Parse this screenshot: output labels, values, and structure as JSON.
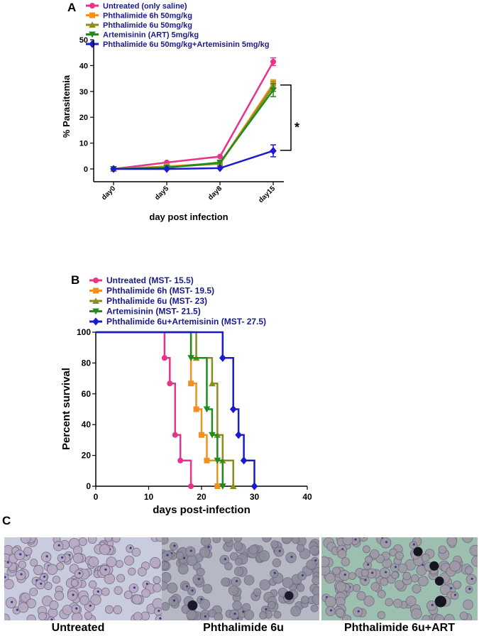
{
  "panels": {
    "a_letter": "A",
    "b_letter": "B",
    "c_letter": "C"
  },
  "chart_data": [
    {
      "type": "line",
      "title": "",
      "xlabel": "day post infection",
      "ylabel": "% Parasitemia",
      "categories": [
        "day0",
        "day5",
        "day8",
        "day15"
      ],
      "ylim": [
        0,
        50
      ],
      "yticks": [
        0,
        10,
        20,
        30,
        40,
        50
      ],
      "legend_position": "top-left",
      "series": [
        {
          "name": "Untreated (only saline)",
          "color": "#e8338a",
          "marker": "circle",
          "values": [
            0,
            2.5,
            4.8,
            41.5
          ],
          "errors": [
            0,
            0,
            0,
            1.5
          ]
        },
        {
          "name": "Phthalimide 6h 50mg/kg",
          "color": "#f0901e",
          "marker": "square",
          "values": [
            0,
            1.0,
            2.2,
            33
          ],
          "errors": [
            0,
            0,
            0,
            1.5
          ]
        },
        {
          "name": "Phthalimide 6u 50mg/kg",
          "color": "#8c8c1a",
          "marker": "triangle-up",
          "values": [
            0,
            0.7,
            2.0,
            32
          ],
          "errors": [
            0,
            0,
            0,
            2
          ]
        },
        {
          "name": "Artemisinin (ART) 5mg/kg",
          "color": "#1e8c1e",
          "marker": "triangle-down",
          "values": [
            0,
            0.5,
            2.5,
            30.5
          ],
          "errors": [
            0,
            0,
            0,
            2.5
          ]
        },
        {
          "name": "Phthalimide 6u 50mg/kg+Artemisinin 5mg/kg",
          "color": "#1a1ad2",
          "marker": "diamond",
          "values": [
            0,
            0,
            0.3,
            7
          ],
          "errors": [
            0,
            0,
            0,
            2.3
          ]
        }
      ],
      "annotation": "*",
      "bracket_range": [
        7.2,
        32.5
      ]
    },
    {
      "type": "step",
      "title": "",
      "xlabel": "days post-infection",
      "ylabel": "Percent survival",
      "xlim": [
        0,
        40
      ],
      "ylim": [
        0,
        100
      ],
      "xticks": [
        0,
        10,
        20,
        30,
        40
      ],
      "yticks": [
        0,
        20,
        40,
        60,
        80,
        100
      ],
      "legend_position": "top-left",
      "series": [
        {
          "name": "Untreated (MST- 15.5)",
          "color": "#e8338a",
          "marker": "circle",
          "x": [
            13,
            14,
            15,
            16,
            18
          ],
          "y": [
            83.3,
            66.7,
            33.3,
            16.7,
            0
          ]
        },
        {
          "name": "Phthalimide 6h (MST- 19.5)",
          "color": "#f0901e",
          "marker": "square",
          "x": [
            18,
            19,
            20,
            21,
            23
          ],
          "y": [
            66.7,
            50,
            33.3,
            16.7,
            0
          ]
        },
        {
          "name": "Phthalimide 6u (MST- 23)",
          "color": "#8c8c1a",
          "marker": "triangle-up",
          "x": [
            19,
            22,
            23,
            24,
            26
          ],
          "y": [
            83.3,
            66.7,
            33.3,
            16.7,
            0
          ]
        },
        {
          "name": "Artemisinin (MST- 21.5)",
          "color": "#1e8c1e",
          "marker": "triangle-down",
          "x": [
            18,
            21,
            22,
            23,
            24
          ],
          "y": [
            83.3,
            50,
            33.3,
            16.7,
            0
          ]
        },
        {
          "name": "Phthalimide 6u+Artemisinin (MST- 27.5)",
          "color": "#1a1ad2",
          "marker": "diamond",
          "x": [
            24,
            26,
            27,
            28,
            30
          ],
          "y": [
            83.3,
            50,
            33.3,
            16.7,
            0
          ]
        }
      ]
    }
  ],
  "micrographs": [
    {
      "caption": "Untreated",
      "bg": "#c9ccdc",
      "cell": "#b7a9c2",
      "dark": "#3a2a6a"
    },
    {
      "caption": "Phthalimide 6u",
      "bg": "#b6b9c4",
      "cell": "#8f8d9c",
      "dark": "#1a1a2a"
    },
    {
      "caption": "Phthalimide 6u+ART",
      "bg": "#9dbfb0",
      "cell": "#9f9aa6",
      "dark": "#15151f"
    }
  ]
}
